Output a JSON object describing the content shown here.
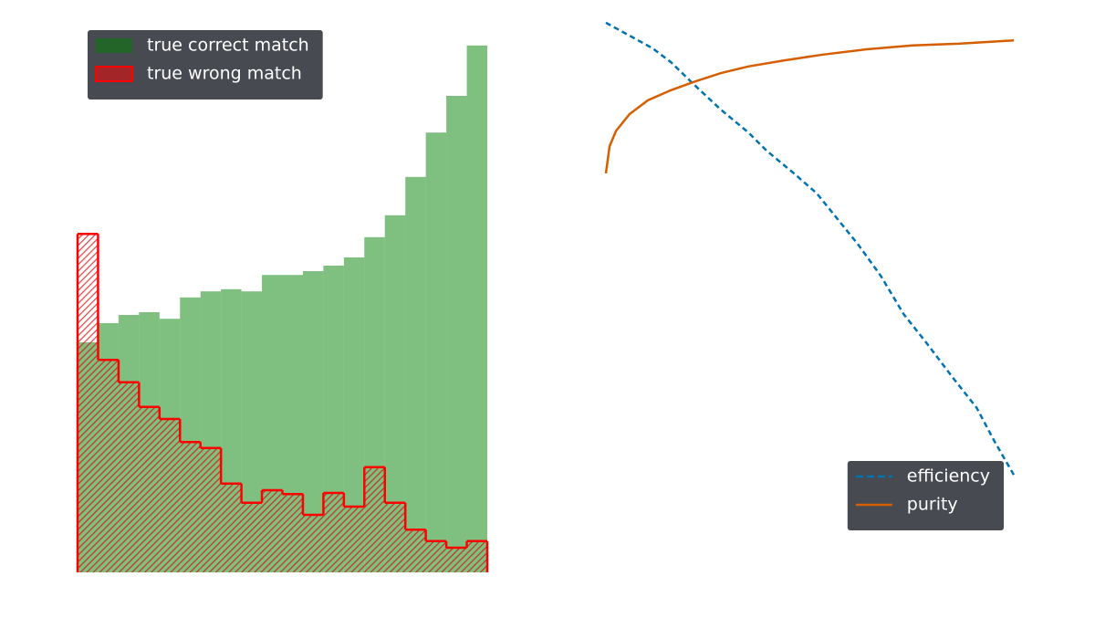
{
  "chart_data": [
    {
      "type": "histogram",
      "bins": [
        0,
        0.05,
        0.1,
        0.15,
        0.2,
        0.25,
        0.3,
        0.35,
        0.4,
        0.45,
        0.5,
        0.55,
        0.6,
        0.65,
        0.7,
        0.75,
        0.8,
        0.85,
        0.9,
        0.95,
        1.0
      ],
      "series": [
        {
          "name": "true correct match",
          "color": "#008000",
          "style": "filled",
          "values": [
            42.0,
            45.5,
            47.0,
            47.5,
            46.3,
            50.2,
            51.3,
            51.7,
            51.3,
            54.3,
            54.3,
            55.0,
            56.0,
            57.5,
            61.2,
            65.2,
            72.2,
            80.3,
            87.0,
            96.2
          ]
        },
        {
          "name": "true wrong match",
          "color": "#ff0000",
          "style": "hatched",
          "values": [
            61.8,
            38.8,
            34.7,
            30.2,
            28.0,
            23.8,
            22.7,
            16.2,
            12.7,
            15.0,
            14.3,
            10.5,
            14.5,
            12.0,
            19.2,
            12.7,
            7.8,
            5.7,
            4.5,
            5.7
          ]
        }
      ],
      "xlim": [
        0,
        1
      ],
      "ylim": [
        0,
        100
      ],
      "legend": "upper left"
    },
    {
      "type": "line",
      "series": [
        {
          "name": "efficiency",
          "color": "#0173b2",
          "linestyle": "dashed",
          "x": [
            0,
            0.114,
            0.159,
            0.215,
            0.282,
            0.349,
            0.394,
            0.461,
            0.517,
            0.562,
            0.618,
            0.674,
            0.73,
            0.786,
            0.853,
            0.909,
            0.953,
            1.0
          ],
          "values": [
            0.992,
            0.946,
            0.921,
            0.881,
            0.835,
            0.794,
            0.761,
            0.72,
            0.684,
            0.643,
            0.592,
            0.535,
            0.466,
            0.414,
            0.349,
            0.297,
            0.236,
            0.176
          ]
        },
        {
          "name": "purity",
          "color": "#d55e00",
          "linestyle": "solid",
          "x": [
            0,
            0.009,
            0.025,
            0.058,
            0.103,
            0.159,
            0.215,
            0.282,
            0.349,
            0.438,
            0.528,
            0.639,
            0.752,
            0.864,
            1.0
          ],
          "values": [
            0.72,
            0.769,
            0.797,
            0.827,
            0.852,
            0.87,
            0.885,
            0.901,
            0.913,
            0.924,
            0.934,
            0.944,
            0.951,
            0.954,
            0.96
          ]
        }
      ],
      "xlim": [
        0,
        1
      ],
      "ylim": [
        0,
        1
      ],
      "legend": "lower right"
    }
  ]
}
